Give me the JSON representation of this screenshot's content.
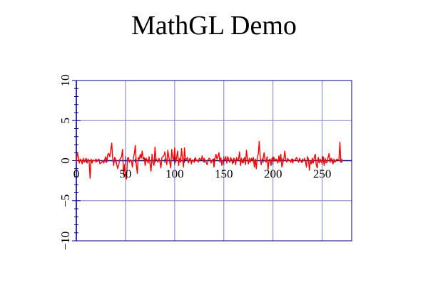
{
  "chart_data": {
    "type": "line",
    "title": "MathGL Demo",
    "xlabel": "",
    "ylabel": "",
    "xlim": [
      0,
      280
    ],
    "ylim": [
      -10,
      10
    ],
    "x_ticks": [
      0,
      50,
      100,
      150,
      200,
      250
    ],
    "x_tick_labels": [
      "0",
      "50",
      "100",
      "150",
      "200",
      "250"
    ],
    "y_ticks": [
      -10,
      -5,
      0,
      5,
      10
    ],
    "y_tick_labels": [
      "−10",
      "−5",
      "0",
      "5",
      "10"
    ],
    "grid": true,
    "colors": {
      "series": "#ff0000",
      "grid": "#8080c0",
      "frame": "#000080"
    },
    "series": [
      {
        "color": "#ff0000",
        "x_start": 0,
        "x_step": 1,
        "values": [
          -0.2,
          1.0,
          0.5,
          -0.3,
          0.2,
          0.0,
          -0.4,
          0.3,
          -0.2,
          0.1,
          0.3,
          -0.3,
          0.2,
          -0.1,
          -2.2,
          0.2,
          -0.3,
          0.1,
          0.0,
          0.0,
          0.2,
          -0.1,
          0.1,
          0.2,
          -0.4,
          -0.3,
          -0.2,
          0.0,
          -0.3,
          0.2,
          0.5,
          -0.2,
          0.8,
          0.9,
          0.5,
          1.3,
          2.2,
          0.3,
          -0.6,
          0.4,
          0.2,
          -0.4,
          -1.0,
          -0.6,
          0.1,
          0.3,
          0.5,
          1.4,
          -1.8,
          -0.5,
          -2.0,
          -2.3,
          0.3,
          0.4,
          -0.2,
          0.1,
          0.0,
          -0.8,
          0.3,
          0.9,
          1.9,
          -0.5,
          -1.6,
          0.4,
          0.2,
          0.8,
          0.3,
          1.2,
          0.2,
          0.4,
          -0.6,
          0.3,
          0.1,
          -0.3,
          0.5,
          -0.5,
          -1.3,
          0.8,
          -0.3,
          -0.6,
          1.7,
          0.2,
          0.1,
          -0.2,
          0.3,
          -0.1,
          -0.9,
          0.4,
          0.5,
          0.6,
          1.1,
          0.3,
          -0.5,
          1.3,
          0.5,
          -0.2,
          -0.9,
          1.4,
          0.3,
          0.1,
          1.6,
          -0.2,
          0.4,
          1.2,
          -0.6,
          0.3,
          -0.2,
          1.5,
          0.2,
          -0.8,
          1.6,
          0.1,
          0.2,
          0.4,
          -0.3,
          0.2,
          0.3,
          -0.4,
          0.1,
          0.0,
          -0.2,
          0.4,
          0.0,
          0.1,
          -0.2,
          0.3,
          0.2,
          0.1,
          0.6,
          -0.1,
          0.3,
          0.0,
          -0.2,
          -0.5,
          0.1,
          0.3,
          0.2,
          -0.3,
          0.0,
          0.2,
          -0.8,
          0.3,
          0.8,
          0.2,
          0.5,
          1.0,
          -0.2,
          0.4,
          -0.6,
          0.0,
          0.2,
          0.1,
          0.5,
          -0.3,
          0.5,
          0.1,
          -0.2,
          0.4,
          0.1,
          -0.4,
          0.3,
          0.2,
          -0.5,
          0.4,
          0.0,
          0.2,
          1.1,
          -0.6,
          0.3,
          -0.3,
          0.0,
          0.4,
          -0.5,
          1.3,
          0.2,
          -0.4,
          0.3,
          -0.2,
          0.3,
          0.0,
          0.4,
          -0.8,
          0.2,
          -1.0,
          0.4,
          0.8,
          2.4,
          0.4,
          -0.5,
          0.2,
          0.3,
          1.0,
          0.0,
          -0.2,
          0.5,
          -1.1,
          0.1,
          0.2,
          -0.6,
          0.3,
          0.0,
          0.4,
          -0.1,
          0.2,
          0.1,
          -0.3,
          0.6,
          -0.2,
          0.8,
          -0.8,
          -0.3,
          0.2,
          1.2,
          0.1,
          -0.2,
          0.3,
          0.0,
          0.1,
          -0.2,
          0.2,
          -0.3,
          0.1,
          0.0,
          0.2,
          0.4,
          0.1,
          -0.2,
          0.3,
          0.0,
          -0.2,
          0.1,
          0.0,
          0.3,
          -0.1,
          -0.8,
          0.5,
          0.2,
          -1.2,
          0.0,
          -0.4,
          0.3,
          -0.3,
          0.5,
          0.8,
          -0.6,
          -0.9,
          0.4,
          -0.3,
          0.2,
          -0.2,
          -0.3,
          0.5,
          -0.6,
          0.3,
          -0.3,
          -0.2,
          0.4,
          0.9,
          -0.2,
          0.3,
          0.1,
          -0.4,
          0.2,
          -0.2,
          0.0,
          0.2,
          0.1,
          0.0,
          2.3,
          -0.2,
          0.0,
          0.0
        ]
      }
    ]
  }
}
